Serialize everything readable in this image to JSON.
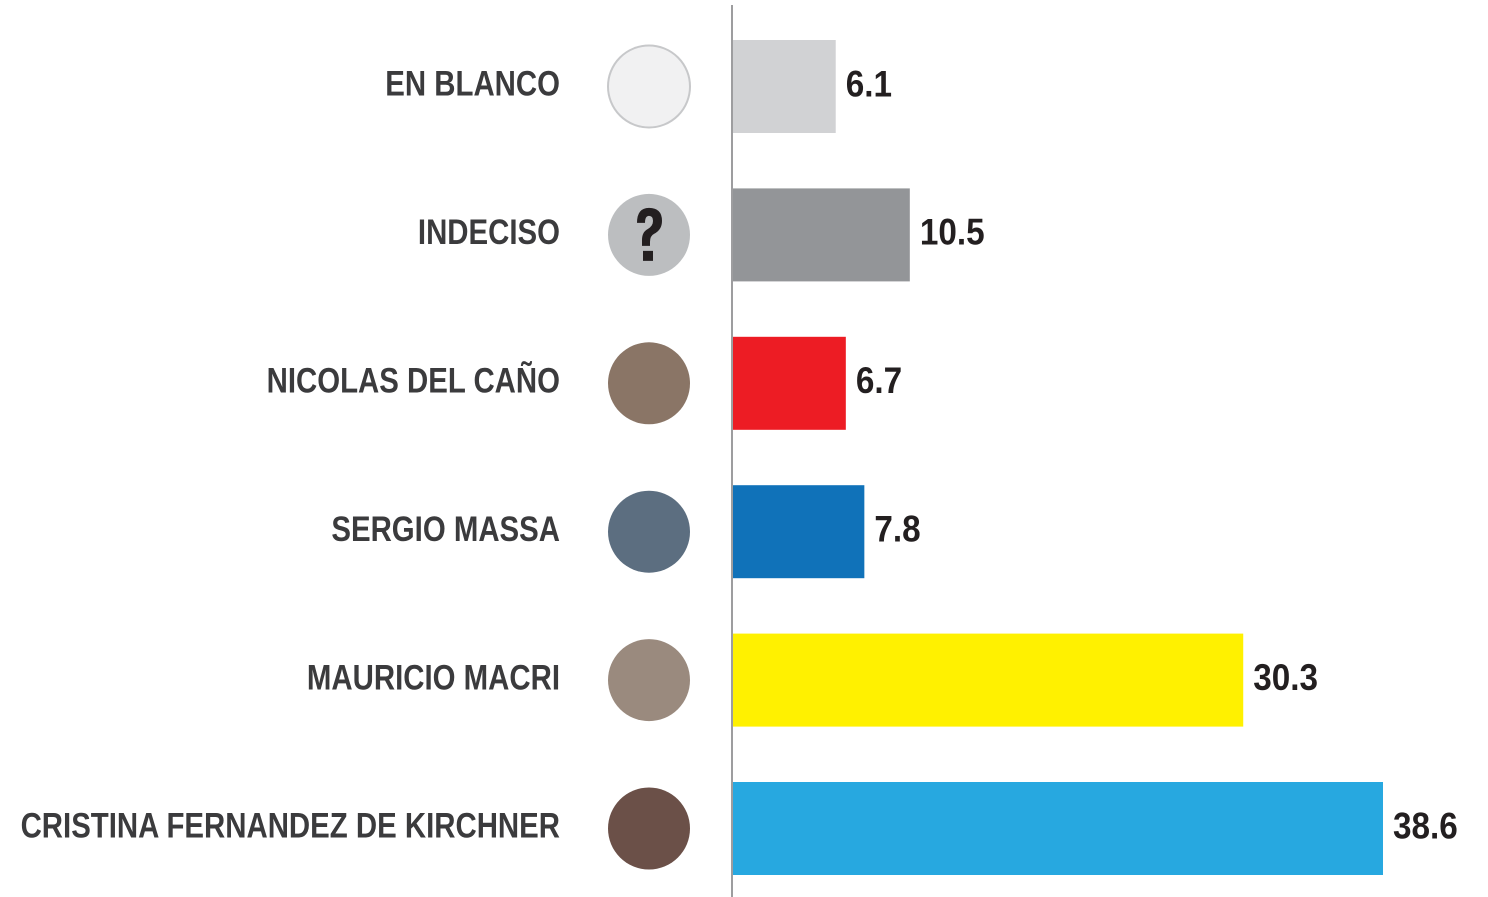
{
  "chart_data": {
    "type": "bar",
    "orientation": "horizontal",
    "categories": [
      "EN BLANCO",
      "INDECISO",
      "NICOLAS DEL CAÑO",
      "SERGIO MASSA",
      "MAURICIO MACRI",
      "CRISTINA FERNANDEZ DE KIRCHNER"
    ],
    "values": [
      6.1,
      10.5,
      6.7,
      7.8,
      30.3,
      38.6
    ],
    "colors": [
      "#d1d2d4",
      "#939598",
      "#ed1c24",
      "#1072b9",
      "#fff100",
      "#27a8e0"
    ]
  }
}
